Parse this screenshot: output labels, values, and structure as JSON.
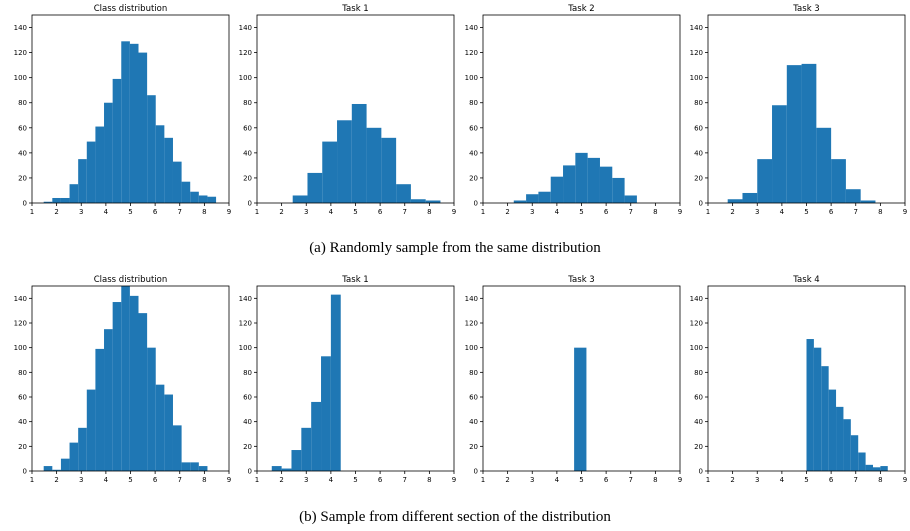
{
  "captions": {
    "a": "(a) Randomly sample from the same distribution",
    "b": "(b) Sample from different section of the distribution"
  },
  "chart_data": [
    {
      "type": "bar",
      "title": "Class distribution",
      "group": "a",
      "xlim": [
        1,
        9
      ],
      "ylim": [
        0,
        150
      ],
      "xticks": [
        1,
        2,
        3,
        4,
        5,
        6,
        7,
        8,
        9
      ],
      "yticks": [
        0,
        20,
        40,
        60,
        80,
        100,
        120,
        140
      ],
      "bin_width": 0.35,
      "color": "#1f77b4",
      "bins": [
        {
          "x": 1.65,
          "y": 1
        },
        {
          "x": 2.0,
          "y": 4
        },
        {
          "x": 2.35,
          "y": 4
        },
        {
          "x": 2.7,
          "y": 15
        },
        {
          "x": 3.05,
          "y": 35
        },
        {
          "x": 3.4,
          "y": 49
        },
        {
          "x": 3.75,
          "y": 61
        },
        {
          "x": 4.1,
          "y": 80
        },
        {
          "x": 4.45,
          "y": 99
        },
        {
          "x": 4.8,
          "y": 129
        },
        {
          "x": 5.15,
          "y": 127
        },
        {
          "x": 5.5,
          "y": 120
        },
        {
          "x": 5.85,
          "y": 86
        },
        {
          "x": 6.2,
          "y": 62
        },
        {
          "x": 6.55,
          "y": 52
        },
        {
          "x": 6.9,
          "y": 33
        },
        {
          "x": 7.25,
          "y": 17
        },
        {
          "x": 7.6,
          "y": 9
        },
        {
          "x": 7.95,
          "y": 6
        },
        {
          "x": 8.3,
          "y": 5
        }
      ]
    },
    {
      "type": "bar",
      "title": "Task 1",
      "group": "a",
      "xlim": [
        1,
        9
      ],
      "ylim": [
        0,
        150
      ],
      "xticks": [
        1,
        2,
        3,
        4,
        5,
        6,
        7,
        8,
        9
      ],
      "yticks": [
        0,
        20,
        40,
        60,
        80,
        100,
        120,
        140
      ],
      "bin_width": 0.6,
      "color": "#1f77b4",
      "bins": [
        {
          "x": 2.75,
          "y": 6
        },
        {
          "x": 3.35,
          "y": 24
        },
        {
          "x": 3.95,
          "y": 49
        },
        {
          "x": 4.55,
          "y": 66
        },
        {
          "x": 5.15,
          "y": 79
        },
        {
          "x": 5.75,
          "y": 60
        },
        {
          "x": 6.35,
          "y": 52
        },
        {
          "x": 6.95,
          "y": 15
        },
        {
          "x": 7.55,
          "y": 3
        },
        {
          "x": 8.15,
          "y": 2
        }
      ]
    },
    {
      "type": "bar",
      "title": "Task 2",
      "group": "a",
      "xlim": [
        1,
        9
      ],
      "ylim": [
        0,
        150
      ],
      "xticks": [
        1,
        2,
        3,
        4,
        5,
        6,
        7,
        8,
        9
      ],
      "yticks": [
        0,
        20,
        40,
        60,
        80,
        100,
        120,
        140
      ],
      "bin_width": 0.5,
      "color": "#1f77b4",
      "bins": [
        {
          "x": 2.5,
          "y": 2
        },
        {
          "x": 3.0,
          "y": 7
        },
        {
          "x": 3.5,
          "y": 9
        },
        {
          "x": 4.0,
          "y": 21
        },
        {
          "x": 4.5,
          "y": 30
        },
        {
          "x": 5.0,
          "y": 40
        },
        {
          "x": 5.5,
          "y": 36
        },
        {
          "x": 6.0,
          "y": 29
        },
        {
          "x": 6.5,
          "y": 20
        },
        {
          "x": 7.0,
          "y": 6
        }
      ]
    },
    {
      "type": "bar",
      "title": "Task 3",
      "group": "a",
      "xlim": [
        1,
        9
      ],
      "ylim": [
        0,
        150
      ],
      "xticks": [
        1,
        2,
        3,
        4,
        5,
        6,
        7,
        8,
        9
      ],
      "yticks": [
        0,
        20,
        40,
        60,
        80,
        100,
        120,
        140
      ],
      "bin_width": 0.6,
      "color": "#1f77b4",
      "bins": [
        {
          "x": 2.1,
          "y": 3
        },
        {
          "x": 2.7,
          "y": 8
        },
        {
          "x": 3.3,
          "y": 35
        },
        {
          "x": 3.9,
          "y": 78
        },
        {
          "x": 4.5,
          "y": 110
        },
        {
          "x": 5.1,
          "y": 111
        },
        {
          "x": 5.7,
          "y": 60
        },
        {
          "x": 6.3,
          "y": 35
        },
        {
          "x": 6.9,
          "y": 11
        },
        {
          "x": 7.5,
          "y": 2
        }
      ]
    },
    {
      "type": "bar",
      "title": "Class distribution",
      "group": "b",
      "xlim": [
        1,
        9
      ],
      "ylim": [
        0,
        150
      ],
      "xticks": [
        1,
        2,
        3,
        4,
        5,
        6,
        7,
        8,
        9
      ],
      "yticks": [
        0,
        20,
        40,
        60,
        80,
        100,
        120,
        140
      ],
      "bin_width": 0.35,
      "color": "#1f77b4",
      "bins": [
        {
          "x": 1.65,
          "y": 4
        },
        {
          "x": 2.0,
          "y": 1
        },
        {
          "x": 2.35,
          "y": 10
        },
        {
          "x": 2.7,
          "y": 23
        },
        {
          "x": 3.05,
          "y": 35
        },
        {
          "x": 3.4,
          "y": 66
        },
        {
          "x": 3.75,
          "y": 99
        },
        {
          "x": 4.1,
          "y": 115
        },
        {
          "x": 4.45,
          "y": 137
        },
        {
          "x": 4.8,
          "y": 150
        },
        {
          "x": 5.15,
          "y": 142
        },
        {
          "x": 5.5,
          "y": 128
        },
        {
          "x": 5.85,
          "y": 100
        },
        {
          "x": 6.2,
          "y": 70
        },
        {
          "x": 6.55,
          "y": 62
        },
        {
          "x": 6.9,
          "y": 37
        },
        {
          "x": 7.25,
          "y": 7
        },
        {
          "x": 7.6,
          "y": 7
        },
        {
          "x": 7.95,
          "y": 4
        }
      ]
    },
    {
      "type": "bar",
      "title": "Task 1",
      "group": "b",
      "xlim": [
        1,
        9
      ],
      "ylim": [
        0,
        150
      ],
      "xticks": [
        1,
        2,
        3,
        4,
        5,
        6,
        7,
        8,
        9
      ],
      "yticks": [
        0,
        20,
        40,
        60,
        80,
        100,
        120,
        140
      ],
      "bin_width": 0.4,
      "color": "#1f77b4",
      "bins": [
        {
          "x": 1.8,
          "y": 4
        },
        {
          "x": 2.2,
          "y": 2
        },
        {
          "x": 2.6,
          "y": 17
        },
        {
          "x": 3.0,
          "y": 35
        },
        {
          "x": 3.4,
          "y": 56
        },
        {
          "x": 3.8,
          "y": 93
        },
        {
          "x": 4.2,
          "y": 143
        }
      ]
    },
    {
      "type": "bar",
      "title": "Task 3",
      "group": "b",
      "xlim": [
        1,
        9
      ],
      "ylim": [
        0,
        150
      ],
      "xticks": [
        1,
        2,
        3,
        4,
        5,
        6,
        7,
        8,
        9
      ],
      "yticks": [
        0,
        20,
        40,
        60,
        80,
        100,
        120,
        140
      ],
      "bin_width": 0.5,
      "color": "#1f77b4",
      "bins": [
        {
          "x": 4.95,
          "y": 100
        }
      ]
    },
    {
      "type": "bar",
      "title": "Task 4",
      "group": "b",
      "xlim": [
        1,
        9
      ],
      "ylim": [
        0,
        150
      ],
      "xticks": [
        1,
        2,
        3,
        4,
        5,
        6,
        7,
        8,
        9
      ],
      "yticks": [
        0,
        20,
        40,
        60,
        80,
        100,
        120,
        140
      ],
      "bin_width": 0.3,
      "color": "#1f77b4",
      "bins": [
        {
          "x": 5.15,
          "y": 107
        },
        {
          "x": 5.45,
          "y": 100
        },
        {
          "x": 5.75,
          "y": 85
        },
        {
          "x": 6.05,
          "y": 66
        },
        {
          "x": 6.35,
          "y": 52
        },
        {
          "x": 6.65,
          "y": 42
        },
        {
          "x": 6.95,
          "y": 29
        },
        {
          "x": 7.25,
          "y": 15
        },
        {
          "x": 7.55,
          "y": 5
        },
        {
          "x": 7.85,
          "y": 3
        },
        {
          "x": 8.15,
          "y": 4
        }
      ]
    }
  ]
}
